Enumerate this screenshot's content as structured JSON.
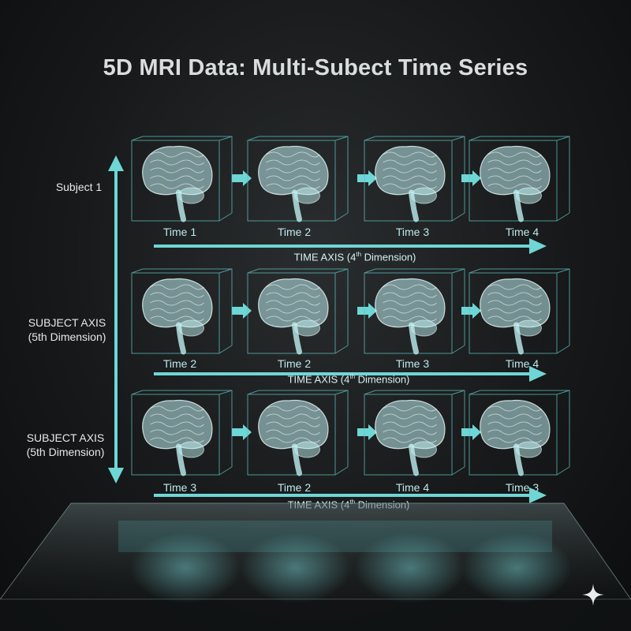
{
  "title": "5D MRI Data: Multi-Subect Time Series",
  "rows": [
    {
      "label_lines": [
        "Subject 1"
      ],
      "times": [
        "Time 1",
        "Time 2",
        "Time 3",
        "Time 4"
      ],
      "axis_text": "TIME AXIS (4",
      "axis_sup": "th",
      "axis_end": " Dimension)"
    },
    {
      "label_lines": [
        "SUBJECT AXIS",
        "(5th Dimension)"
      ],
      "times": [
        "Time 2",
        "Time 2",
        "Time 3",
        "Time 4"
      ],
      "axis_text": "TIME AXIS (4",
      "axis_sup": "th",
      "axis_end": " Dimension)"
    },
    {
      "label_lines": [
        "SUBJECT AXIS",
        "(5th Dimension)"
      ],
      "times": [
        "Time 3",
        "Time 2",
        "Time 4",
        "Time 3"
      ],
      "axis_text": "TIME AXIS (4",
      "axis_sup": "th",
      "axis_end": " Dimension)"
    }
  ],
  "colors": {
    "accent": "#6fd6d6",
    "brain": "#bfeff0",
    "box": "#5fbfc0"
  },
  "icons": {
    "brain": "brain-icon",
    "arrow": "arrow-right-icon",
    "sparkle": "sparkle-icon"
  }
}
